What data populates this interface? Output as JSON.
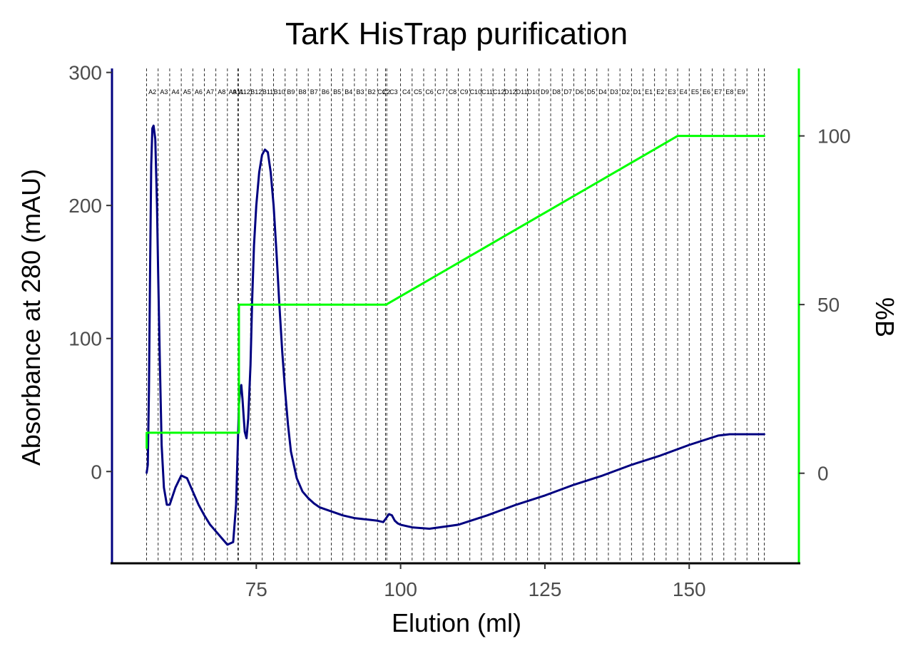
{
  "chart_data": {
    "type": "line",
    "title": "TarK HisTrap purification",
    "xlabel": "Elution (ml)",
    "ylabel": "Absorbance at 280 (mAU)",
    "y2label": "%B",
    "xlim": [
      50,
      169
    ],
    "ylim": [
      -69,
      303
    ],
    "y2lim": [
      -26.7,
      120
    ],
    "x_ticks": [
      75,
      100,
      125,
      150
    ],
    "y_ticks": [
      0,
      100,
      200,
      300
    ],
    "y2_ticks": [
      0,
      50,
      100
    ],
    "grid": false,
    "colors": {
      "absorbance": "#000080",
      "percent_b": "#00ff00",
      "fraction_line": "#000000"
    },
    "series": [
      {
        "axis": "left",
        "x": [
          56.0,
          56.2,
          56.4,
          56.6,
          56.8,
          57.0,
          57.2,
          57.5,
          57.8,
          58.0,
          58.3,
          58.6,
          59.0,
          59.5,
          60.0,
          61.0,
          62.0,
          63.0,
          64.0,
          65.0,
          66.0,
          67.0,
          68.0,
          69.0,
          70.0,
          71.0,
          71.5,
          71.8,
          72.0,
          72.2,
          72.4,
          72.6,
          72.8,
          73.0,
          73.3,
          73.6,
          74.0,
          74.3,
          74.6,
          75.0,
          75.5,
          76.0,
          76.5,
          77.0,
          77.5,
          78.0,
          78.5,
          79.0,
          79.5,
          80.0,
          80.5,
          81.0,
          82.0,
          83.0,
          84.0,
          85.0,
          86.0,
          88.0,
          90.0,
          92.0,
          94.0,
          96.0,
          97.0,
          97.5,
          98.0,
          98.5,
          99.0,
          99.5,
          100.0,
          102.0,
          105.0,
          110.0,
          115.0,
          120.0,
          125.0,
          130.0,
          135.0,
          140.0,
          145.0,
          150.0,
          155.0,
          157.0,
          158.0,
          160.0,
          163.0
        ],
        "y": [
          -1,
          5,
          60,
          150,
          230,
          258,
          260,
          250,
          200,
          150,
          80,
          20,
          -12,
          -25,
          -25,
          -12,
          -3,
          -5,
          -15,
          -25,
          -33,
          -40,
          -45,
          -50,
          -55,
          -53,
          -25,
          20,
          50,
          62,
          65,
          55,
          42,
          30,
          25,
          40,
          80,
          130,
          170,
          200,
          225,
          238,
          242,
          240,
          225,
          200,
          165,
          125,
          90,
          60,
          35,
          15,
          -5,
          -15,
          -20,
          -24,
          -27,
          -30,
          -33,
          -35,
          -36,
          -37,
          -38,
          -35,
          -32,
          -33,
          -37,
          -39,
          -40,
          -42,
          -43,
          -40,
          -33,
          -25,
          -18,
          -10,
          -3,
          5,
          12,
          20,
          27,
          28,
          28,
          28,
          28
        ]
      },
      {
        "axis": "right",
        "x": [
          56.0,
          56.0,
          72.0,
          72.0,
          97.5,
          148.0,
          163.0
        ],
        "y": [
          7.5,
          12,
          12,
          50,
          50,
          100,
          100
        ]
      }
    ],
    "fractions": {
      "labels": [
        "A2",
        "A3",
        "A4",
        "A5",
        "A6",
        "A7",
        "A8",
        "A9",
        "A11",
        "A12",
        "B12",
        "B11",
        "B10",
        "B9",
        "B8",
        "B7",
        "B6",
        "B5",
        "B4",
        "B3",
        "B2",
        "C1",
        "C2",
        "C3",
        "C4",
        "C5",
        "C6",
        "C7",
        "C8",
        "C9",
        "C10",
        "C11",
        "C12",
        "D12",
        "D11",
        "D10",
        "D9",
        "D8",
        "D7",
        "D6",
        "D5",
        "D4",
        "D3",
        "D2",
        "D1",
        "E1",
        "E2",
        "E3",
        "E4",
        "E5",
        "E6",
        "E7",
        "E8",
        "E9"
      ],
      "boundaries": [
        56.0,
        58.0,
        60.0,
        62.0,
        64.0,
        66.0,
        68.0,
        70.0,
        71.8,
        71.9,
        74.0,
        76.0,
        78.0,
        80.0,
        82.0,
        84.0,
        86.0,
        88.0,
        90.0,
        92.0,
        94.0,
        96.0,
        97.4,
        97.6,
        100.0,
        102.0,
        104.0,
        106.0,
        108.0,
        110.0,
        112.0,
        114.0,
        116.0,
        118.0,
        120.0,
        122.0,
        124.0,
        126.0,
        128.0,
        130.0,
        132.0,
        134.0,
        136.0,
        138.0,
        140.0,
        142.0,
        144.0,
        146.0,
        148.0,
        150.0,
        152.0,
        154.0,
        156.0,
        158.0,
        160.0,
        162.0,
        163.0
      ]
    }
  }
}
